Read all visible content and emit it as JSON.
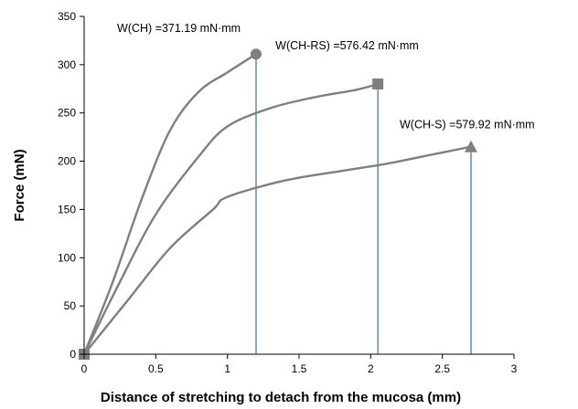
{
  "chart_data": {
    "type": "line",
    "title": "",
    "xlabel": "Distance of stretching to detach from the mucosa (mm)",
    "ylabel": "Force (mN)",
    "xlim": [
      0,
      3
    ],
    "ylim": [
      0,
      350
    ],
    "xticks": [
      "0",
      "0.5",
      "1",
      "1.5",
      "2",
      "2.5",
      "3"
    ],
    "yticks": [
      "0",
      "50",
      "100",
      "150",
      "200",
      "250",
      "300",
      "350"
    ],
    "grid": false,
    "legend": "none",
    "colors": {
      "curve": "#7f7f7f",
      "drop_line": "#3a6ea5",
      "axis": "#000000"
    },
    "series": [
      {
        "marker": "circle",
        "points": [
          [
            0,
            0
          ],
          [
            0.2,
            75
          ],
          [
            0.4,
            160
          ],
          [
            0.6,
            232
          ],
          [
            0.8,
            272
          ],
          [
            1.0,
            292
          ],
          [
            1.2,
            311
          ]
        ],
        "end": [
          1.2,
          311
        ],
        "annotation": "W(CH) =371.19 mN·mm"
      },
      {
        "marker": "square",
        "points": [
          [
            0,
            0
          ],
          [
            0.25,
            75
          ],
          [
            0.5,
            145
          ],
          [
            0.8,
            205
          ],
          [
            1.0,
            236
          ],
          [
            1.3,
            255
          ],
          [
            1.6,
            266
          ],
          [
            1.9,
            274
          ],
          [
            2.05,
            280
          ]
        ],
        "end": [
          2.05,
          280
        ],
        "annotation": "W(CH-RS) =576.42 mN·mm"
      },
      {
        "marker": "triangle",
        "points": [
          [
            0,
            0
          ],
          [
            0.3,
            55
          ],
          [
            0.6,
            110
          ],
          [
            0.9,
            150
          ],
          [
            1.0,
            163
          ],
          [
            1.4,
            180
          ],
          [
            1.8,
            190
          ],
          [
            2.1,
            197
          ],
          [
            2.4,
            206
          ],
          [
            2.7,
            215
          ]
        ],
        "end": [
          2.7,
          215
        ],
        "annotation": "W(CH-S) =579.92 mN·mm"
      }
    ],
    "origin_marker": [
      0,
      0
    ]
  }
}
